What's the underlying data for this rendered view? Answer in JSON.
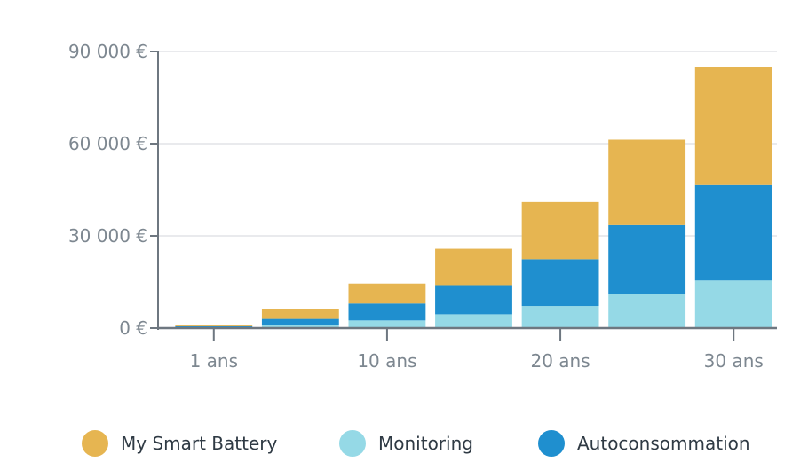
{
  "chart_data": {
    "type": "bar",
    "stacked": true,
    "title": "",
    "xlabel": "",
    "ylabel": "",
    "ylim": [
      0,
      90000
    ],
    "y_ticks": [
      0,
      30000,
      60000,
      90000
    ],
    "y_tick_labels": [
      "0 €",
      "30 000 €",
      "60 000 €",
      "90 000 €"
    ],
    "categories": [
      "1",
      "5",
      "10",
      "15",
      "20",
      "25",
      "30"
    ],
    "x_tick_labels": [
      {
        "category": "1",
        "label": "1 ans"
      },
      {
        "category": "10",
        "label": "10 ans"
      },
      {
        "category": "20",
        "label": "20 ans"
      },
      {
        "category": "30",
        "label": "30 ans"
      }
    ],
    "series": [
      {
        "name": "Monitoring",
        "color": "#95d9e6",
        "values": [
          300,
          1000,
          2500,
          4500,
          7200,
          11000,
          15500
        ]
      },
      {
        "name": "Autoconsommation",
        "color": "#1f8fcf",
        "values": [
          300,
          2000,
          5500,
          9500,
          15200,
          22500,
          31000
        ]
      },
      {
        "name": "My Smart Battery",
        "color": "#e6b551",
        "values": [
          400,
          3200,
          6500,
          11800,
          18600,
          27800,
          38500
        ]
      }
    ],
    "grid": true,
    "legend_position": "bottom"
  },
  "legend": {
    "items": [
      {
        "label": "My Smart Battery",
        "color": "#e6b551"
      },
      {
        "label": "Monitoring",
        "color": "#95d9e6"
      },
      {
        "label": "Autoconsommation",
        "color": "#1f8fcf"
      }
    ]
  }
}
